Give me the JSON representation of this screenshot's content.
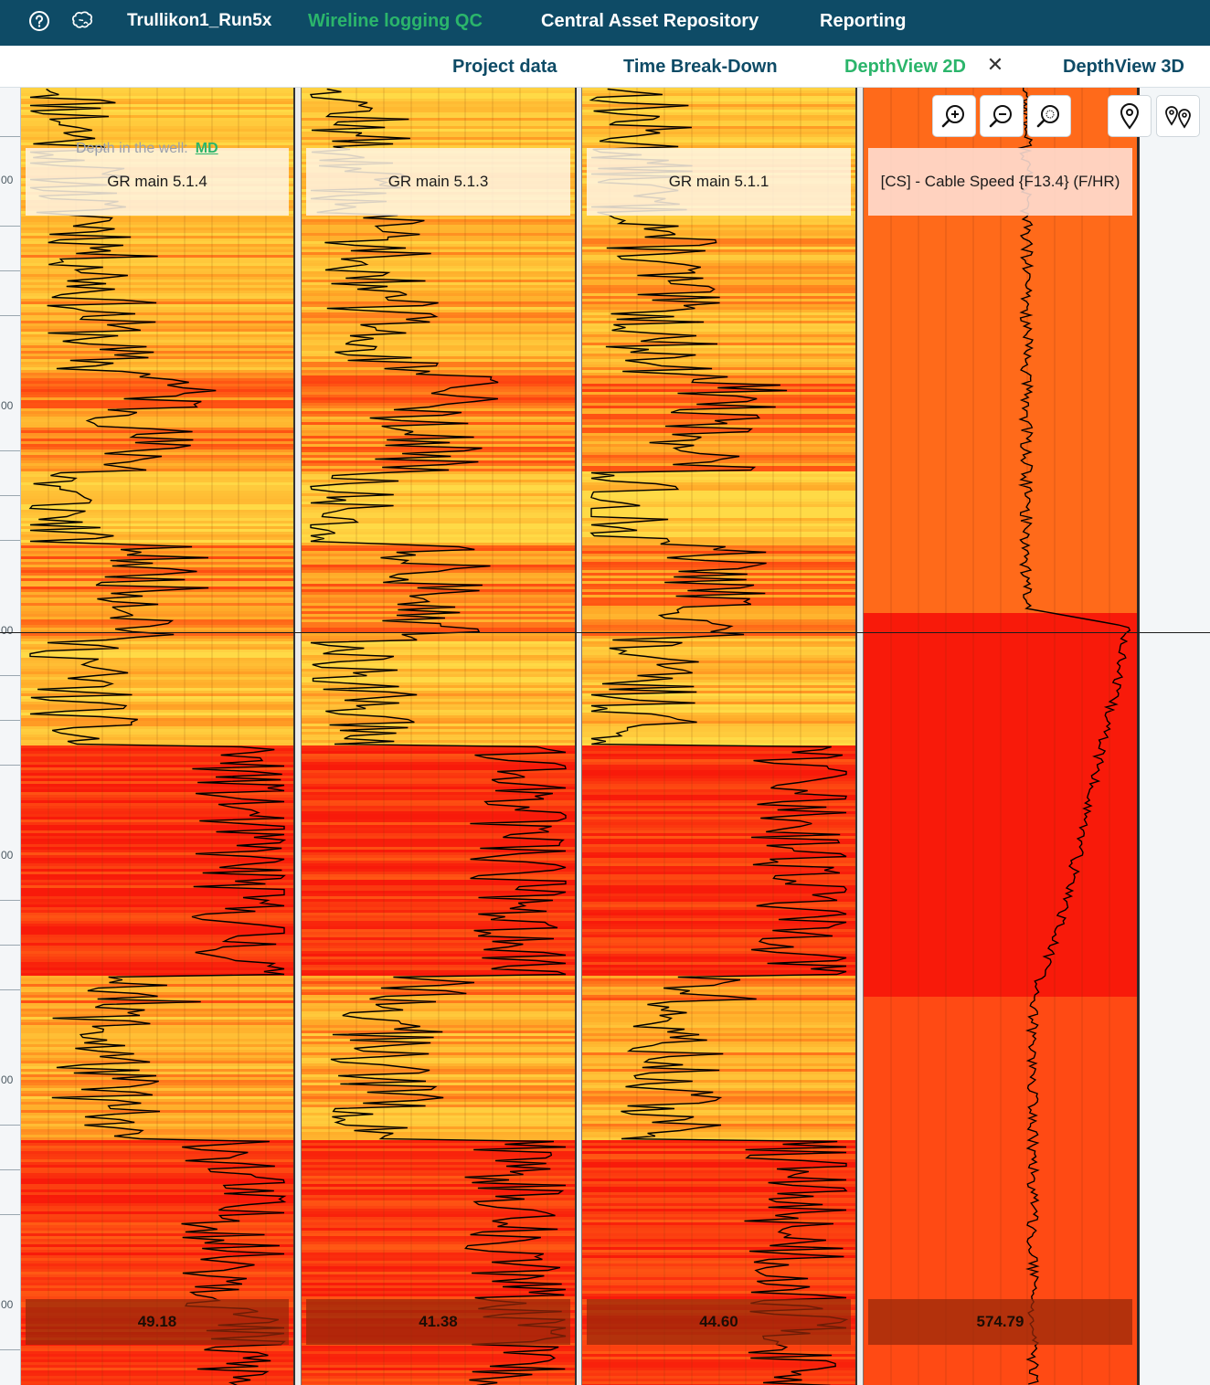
{
  "topbar": {
    "project_name": "Trullikon1_Run5x",
    "nav": [
      {
        "label": "Wireline logging QC",
        "active": true
      },
      {
        "label": "Central Asset Repository",
        "active": false
      },
      {
        "label": "Reporting",
        "active": false
      }
    ],
    "icons": [
      "help-circle-icon",
      "brain-icon"
    ]
  },
  "subnav": {
    "tabs": [
      {
        "label": "Project data",
        "active": false
      },
      {
        "label": "Time Break-Down",
        "active": false
      },
      {
        "label": "DepthView 2D",
        "active": true,
        "closable": true
      },
      {
        "label": "DepthView 3D",
        "active": false
      }
    ]
  },
  "depth_view": {
    "depth_label": "Depth in the well:",
    "depth_reference": "MD",
    "ruler_labels": [
      "00",
      "00",
      "00",
      "00",
      "00",
      "00"
    ],
    "tracks": [
      {
        "title": "GR main 5.1.4",
        "cursor_value": "49.18"
      },
      {
        "title": "GR main 5.1.3",
        "cursor_value": "41.38"
      },
      {
        "title": "GR main 5.1.1",
        "cursor_value": "44.60"
      },
      {
        "title": "[CS] - Cable Speed {F13.4} (F/HR)",
        "cursor_value": "574.79"
      }
    ],
    "toolbar": [
      "zoom-in-icon",
      "zoom-out-icon",
      "zoom-reset-icon",
      "location-pin-icon",
      "multi-pin-icon"
    ],
    "colors": {
      "yellow": "#ffd23f",
      "orange": "#ff6a1a",
      "red": "#f81a0a",
      "curve": "#000000"
    }
  }
}
